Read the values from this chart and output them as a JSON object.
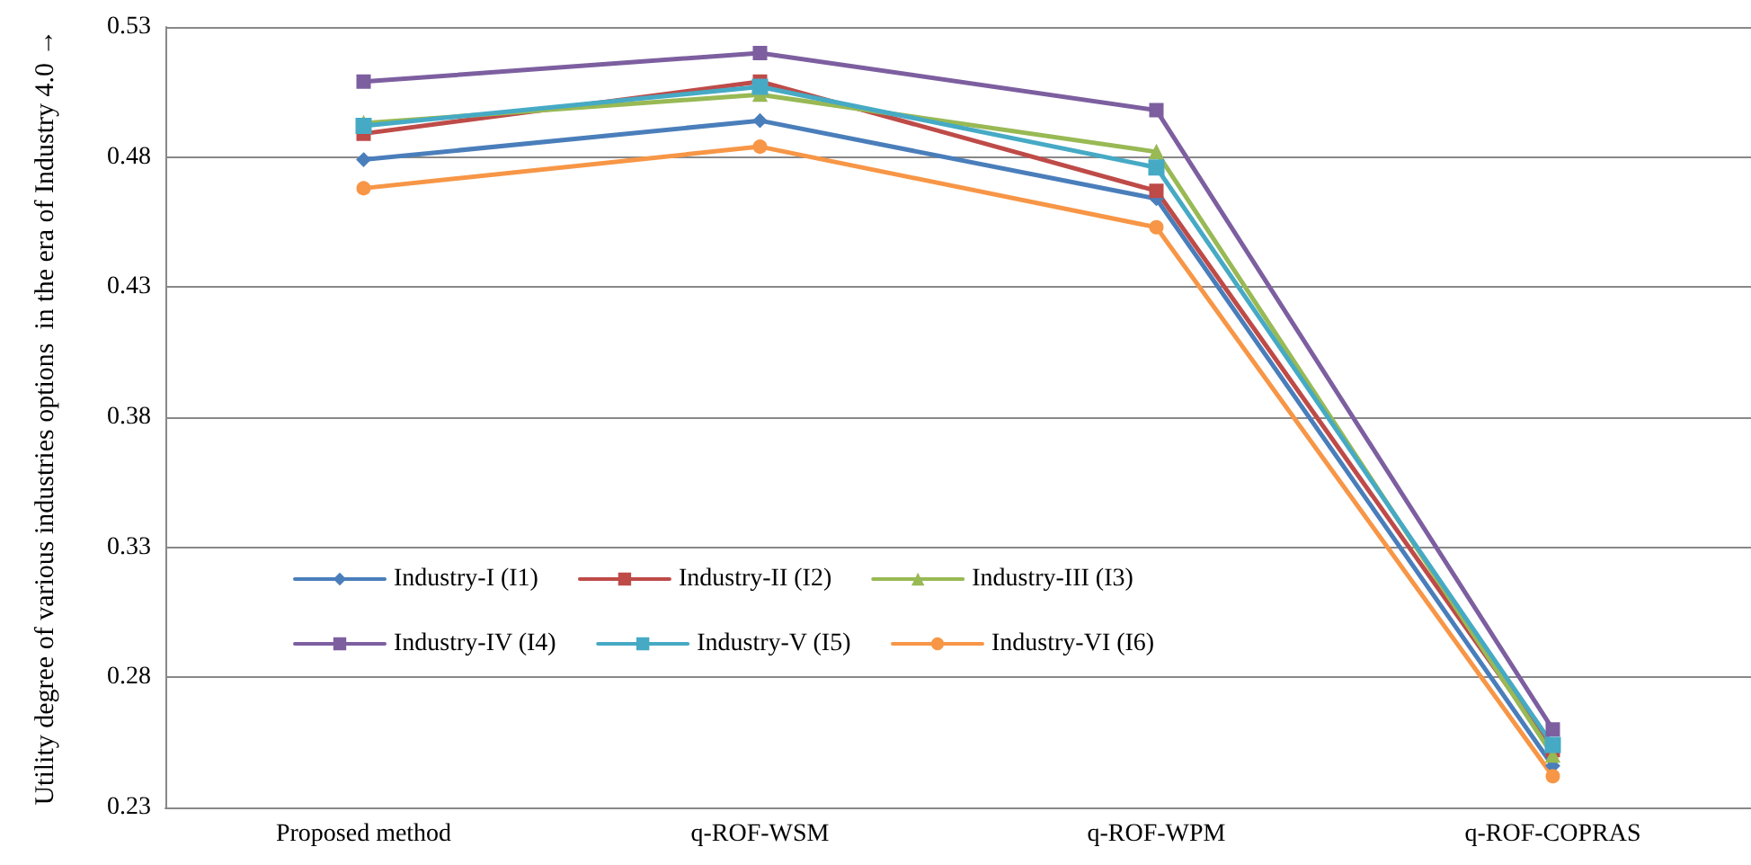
{
  "chart_data": {
    "type": "line",
    "ylabel": "Utility degree of various industries options  in the era of Industry 4.0 →",
    "categories": [
      "Proposed method",
      "q-ROF-WSM",
      "q-ROF-WPM",
      "q-ROF-COPRAS"
    ],
    "series": [
      {
        "name": "Industry-I (I1)",
        "color": "#4a7ebb",
        "marker": "diamond",
        "values": [
          0.479,
          0.494,
          0.464,
          0.246
        ]
      },
      {
        "name": "Industry-II (I2)",
        "color": "#be4b48",
        "marker": "square",
        "values": [
          0.489,
          0.509,
          0.467,
          0.252
        ]
      },
      {
        "name": "Industry-III (I3)",
        "color": "#98b954",
        "marker": "triangle",
        "values": [
          0.493,
          0.504,
          0.482,
          0.25
        ]
      },
      {
        "name": "Industry-IV (I4)",
        "color": "#7d5fa0",
        "marker": "square",
        "values": [
          0.509,
          0.52,
          0.498,
          0.26
        ]
      },
      {
        "name": "Industry-V (I5)",
        "color": "#46aac5",
        "marker": "cross",
        "values": [
          0.492,
          0.507,
          0.476,
          0.254
        ]
      },
      {
        "name": "Industry-VI (I6)",
        "color": "#f79646",
        "marker": "circle",
        "values": [
          0.468,
          0.484,
          0.453,
          0.242
        ]
      }
    ],
    "ylim": [
      0.23,
      0.53
    ],
    "yticks": [
      0.23,
      0.28,
      0.33,
      0.38,
      0.43,
      0.48,
      0.53
    ],
    "grid": "y",
    "legend": "bottom left",
    "line_style": "solid"
  }
}
